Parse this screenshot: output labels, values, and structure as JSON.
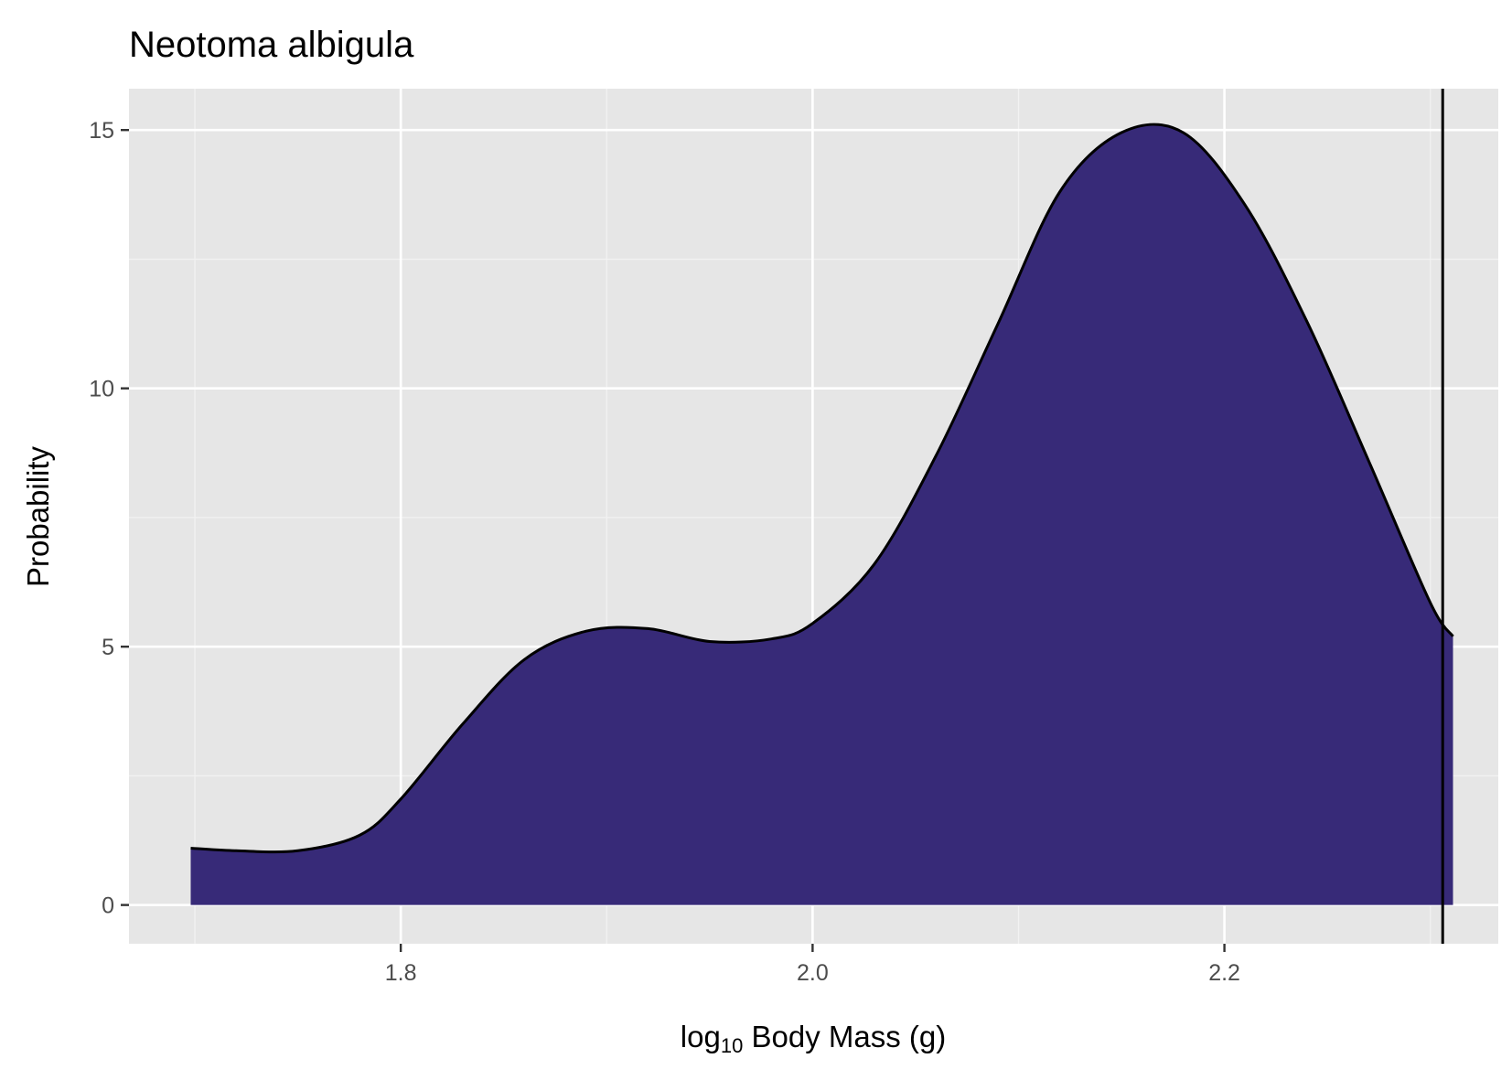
{
  "chart_data": {
    "type": "area",
    "title": "Neotoma albigula",
    "xlabel": {
      "prefix": "log",
      "subscript": "10",
      "suffix": " Body Mass (g)"
    },
    "ylabel": "Probability",
    "xlim": [
      1.668,
      2.333
    ],
    "ylim": [
      -0.75,
      15.8
    ],
    "x_ticks": [
      1.8,
      2.0,
      2.2
    ],
    "x_tick_labels": [
      "1.8",
      "2.0",
      "2.2"
    ],
    "y_ticks": [
      0,
      5,
      10,
      15
    ],
    "y_tick_labels": [
      "0",
      "5",
      "10",
      "15"
    ],
    "grid": true,
    "legend": "none",
    "reference_line_x": 2.306,
    "series": [
      {
        "x": [
          1.698,
          1.72,
          1.75,
          1.78,
          1.8,
          1.83,
          1.86,
          1.89,
          1.92,
          1.95,
          1.98,
          2.0,
          2.03,
          2.06,
          2.09,
          2.12,
          2.15,
          2.18,
          2.21,
          2.24,
          2.27,
          2.3,
          2.311
        ],
        "y": [
          1.1,
          1.05,
          1.05,
          1.35,
          2.05,
          3.5,
          4.75,
          5.3,
          5.35,
          5.1,
          5.15,
          5.45,
          6.6,
          8.7,
          11.25,
          13.8,
          14.95,
          14.95,
          13.55,
          11.3,
          8.6,
          5.85,
          5.2
        ]
      }
    ],
    "colors": {
      "fill": "#372a78",
      "outline": "#000000",
      "reference_line": "#000000",
      "panel_background": "#e6e6e6",
      "grid_major": "#ffffff",
      "grid_minor": "#f2f2f2"
    }
  }
}
